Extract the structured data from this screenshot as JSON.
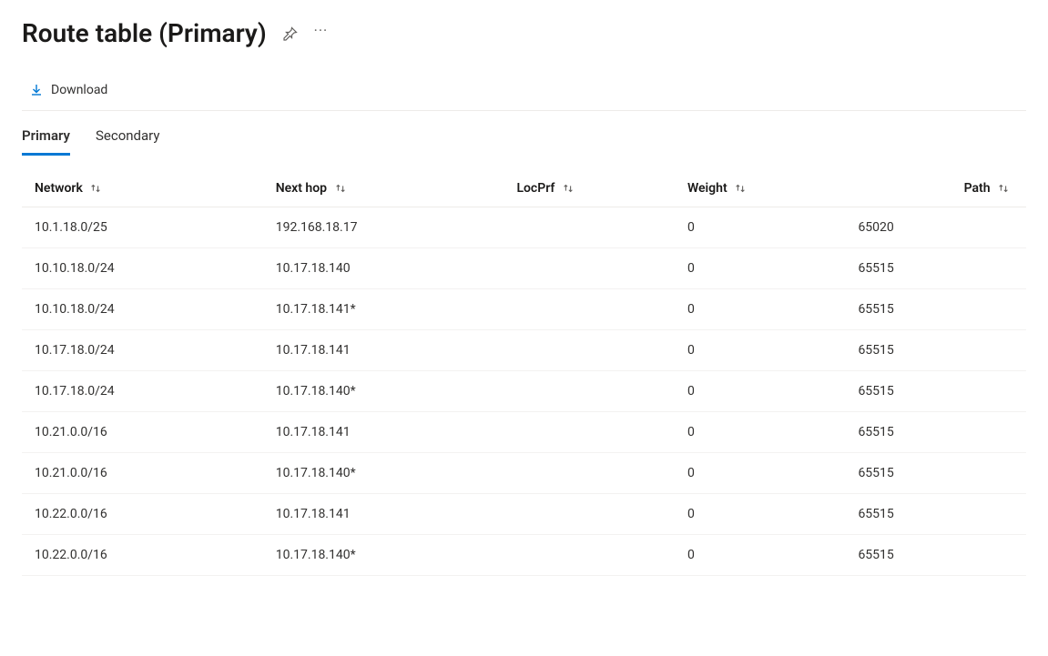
{
  "header": {
    "title": "Route table (Primary)"
  },
  "toolbar": {
    "download_label": "Download"
  },
  "tabs": [
    {
      "label": "Primary",
      "active": true
    },
    {
      "label": "Secondary",
      "active": false
    }
  ],
  "table": {
    "columns": [
      {
        "key": "network",
        "label": "Network"
      },
      {
        "key": "nexthop",
        "label": "Next hop"
      },
      {
        "key": "locprf",
        "label": "LocPrf"
      },
      {
        "key": "weight",
        "label": "Weight"
      },
      {
        "key": "path",
        "label": "Path"
      }
    ],
    "rows": [
      {
        "network": "10.1.18.0/25",
        "nexthop": "192.168.18.17",
        "locprf": "",
        "weight": "0",
        "path": "65020"
      },
      {
        "network": "10.10.18.0/24",
        "nexthop": "10.17.18.140",
        "locprf": "",
        "weight": "0",
        "path": "65515"
      },
      {
        "network": "10.10.18.0/24",
        "nexthop": "10.17.18.141*",
        "locprf": "",
        "weight": "0",
        "path": "65515"
      },
      {
        "network": "10.17.18.0/24",
        "nexthop": "10.17.18.141",
        "locprf": "",
        "weight": "0",
        "path": "65515"
      },
      {
        "network": "10.17.18.0/24",
        "nexthop": "10.17.18.140*",
        "locprf": "",
        "weight": "0",
        "path": "65515"
      },
      {
        "network": "10.21.0.0/16",
        "nexthop": "10.17.18.141",
        "locprf": "",
        "weight": "0",
        "path": "65515"
      },
      {
        "network": "10.21.0.0/16",
        "nexthop": "10.17.18.140*",
        "locprf": "",
        "weight": "0",
        "path": "65515"
      },
      {
        "network": "10.22.0.0/16",
        "nexthop": "10.17.18.141",
        "locprf": "",
        "weight": "0",
        "path": "65515"
      },
      {
        "network": "10.22.0.0/16",
        "nexthop": "10.17.18.140*",
        "locprf": "",
        "weight": "0",
        "path": "65515"
      }
    ]
  },
  "colors": {
    "accent": "#0078d4",
    "text": "#323130",
    "text_secondary": "#605e5c",
    "border": "#edebe9",
    "row_border": "#f3f2f1",
    "background": "#ffffff"
  }
}
